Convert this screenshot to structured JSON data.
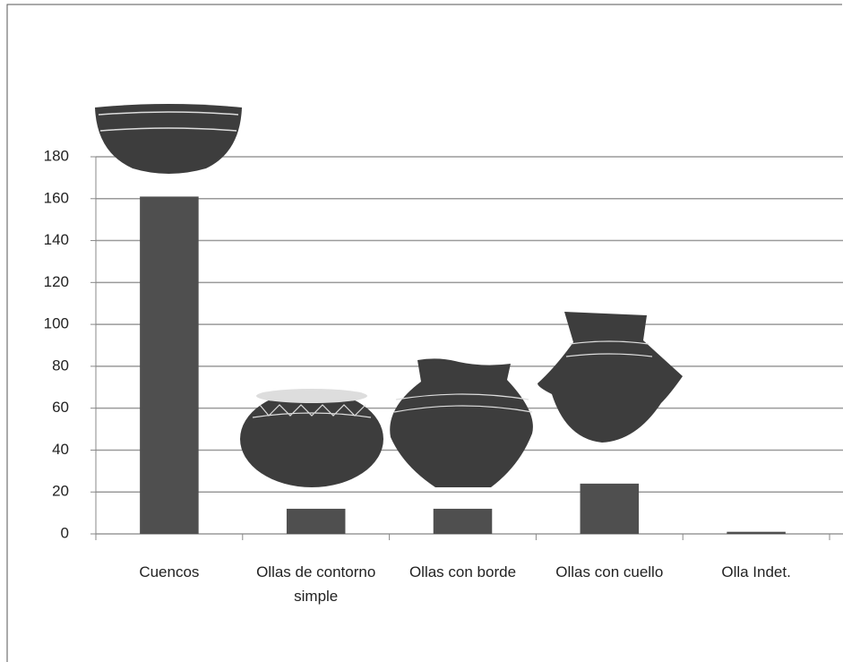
{
  "chart_data": {
    "type": "bar",
    "categories": [
      "Cuencos",
      "Ollas de contorno simple",
      "Ollas con borde",
      "Ollas con cuello",
      "Olla Indet."
    ],
    "values": [
      161,
      12,
      12,
      24,
      1
    ],
    "color": "#4f4f4f",
    "ylim": [
      0,
      180
    ],
    "yticks": [
      0,
      20,
      40,
      60,
      80,
      100,
      120,
      140,
      160,
      180
    ],
    "grid": true
  }
}
